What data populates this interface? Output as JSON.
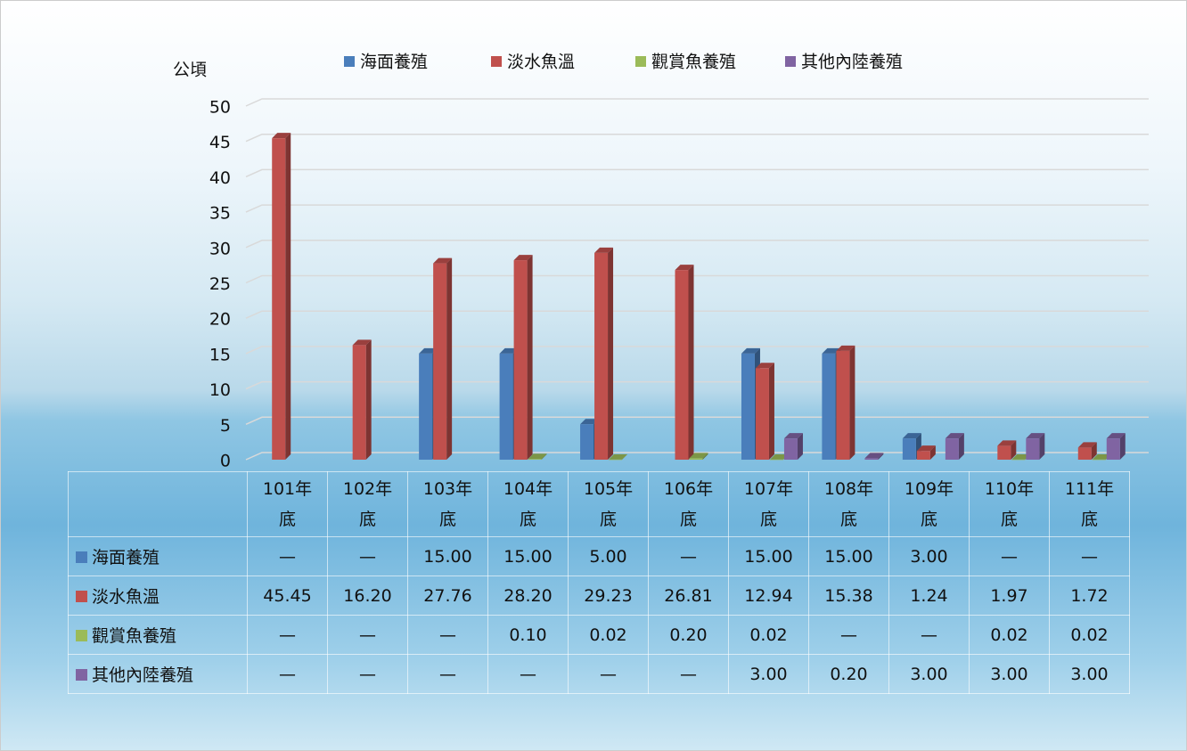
{
  "chart_data": {
    "type": "bar",
    "y_label": "公頃",
    "categories": [
      "101年底",
      "102年底",
      "103年底",
      "104年底",
      "105年底",
      "106年底",
      "107年底",
      "108年底",
      "109年底",
      "110年底",
      "111年底"
    ],
    "series": [
      {
        "name": "海面養殖",
        "color": "#4a7ebb",
        "values": [
          null,
          null,
          15,
          15,
          5,
          null,
          15,
          15,
          3,
          null,
          null
        ],
        "value_labels": [
          "—",
          "—",
          "15.00",
          "15.00",
          "5.00",
          "—",
          "15.00",
          "15.00",
          "3.00",
          "—",
          "—"
        ]
      },
      {
        "name": "淡水魚溫",
        "color": "#c0504d",
        "values": [
          45.45,
          16.2,
          27.76,
          28.2,
          29.23,
          26.81,
          12.94,
          15.38,
          1.24,
          1.97,
          1.72
        ],
        "value_labels": [
          "45.45",
          "16.20",
          "27.76",
          "28.20",
          "29.23",
          "26.81",
          "12.94",
          "15.38",
          "1.24",
          "1.97",
          "1.72"
        ]
      },
      {
        "name": "觀賞魚養殖",
        "color": "#9bbb59",
        "values": [
          null,
          null,
          null,
          0.1,
          0.02,
          0.2,
          0.02,
          null,
          null,
          0.02,
          0.02
        ],
        "value_labels": [
          "—",
          "—",
          "—",
          "0.10",
          "0.02",
          "0.20",
          "0.02",
          "—",
          "—",
          "0.02",
          "0.02"
        ]
      },
      {
        "name": "其他內陸養殖",
        "color": "#8064a2",
        "values": [
          null,
          null,
          null,
          null,
          null,
          null,
          3,
          0.2,
          3,
          3,
          3
        ],
        "value_labels": [
          "—",
          "—",
          "—",
          "—",
          "—",
          "—",
          "3.00",
          "0.20",
          "3.00",
          "3.00",
          "3.00"
        ]
      }
    ],
    "ylim": [
      0,
      50
    ],
    "yticks": [
      0,
      5,
      10,
      15,
      20,
      25,
      30,
      35,
      40,
      45,
      50
    ],
    "grid": true
  }
}
